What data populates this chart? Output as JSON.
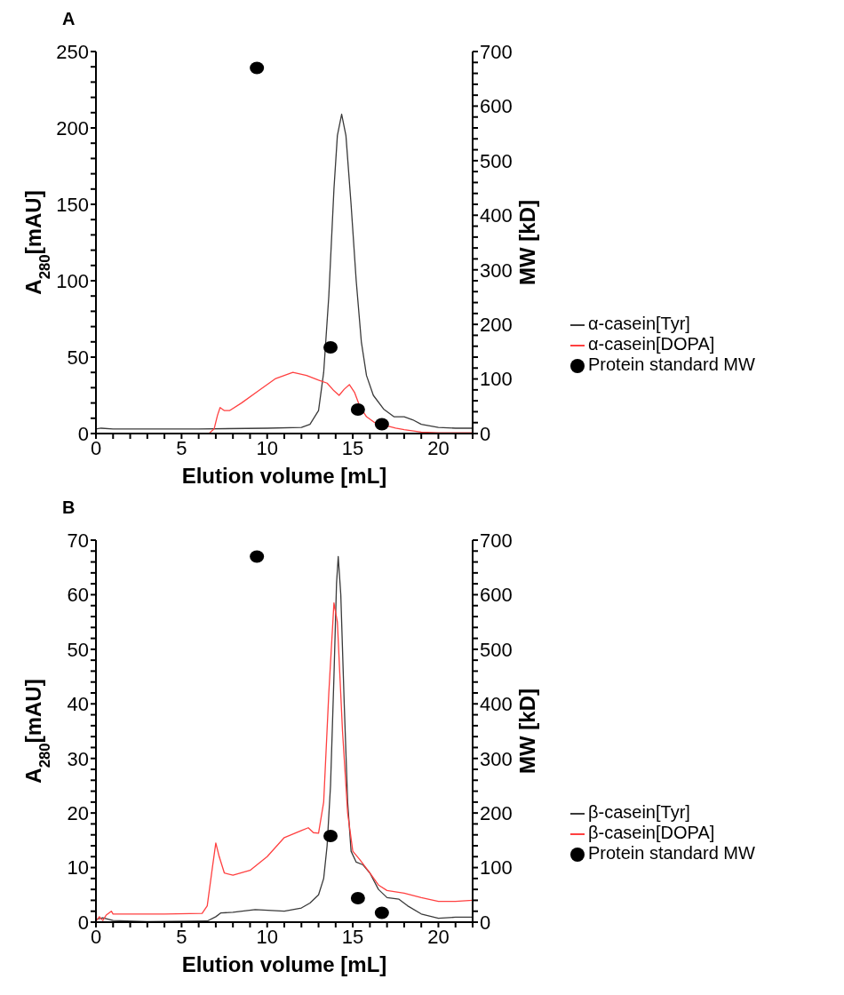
{
  "chart_data": [
    {
      "type": "line",
      "title": "A",
      "xlabel": "Elution volume [mL]",
      "ylabel": "A$_{280}$[mAU]",
      "y2label": "MW [kD]",
      "legend": "right",
      "grid": false,
      "xlim": [
        0,
        22
      ],
      "xticks": [
        0,
        {
          "value": 1,
          "label": null
        },
        {
          "value": 2,
          "label": null
        },
        {
          "value": 3,
          "label": null
        },
        {
          "value": 4,
          "label": null
        },
        5,
        {
          "value": 6,
          "label": null
        },
        {
          "value": 7,
          "label": null
        },
        {
          "value": 8,
          "label": null
        },
        {
          "value": 9,
          "label": null
        },
        10,
        {
          "value": 11,
          "label": null
        },
        {
          "value": 12,
          "label": null
        },
        {
          "value": 13,
          "label": null
        },
        {
          "value": 14,
          "label": null
        },
        15,
        {
          "value": 16,
          "label": null
        },
        {
          "value": 17,
          "label": null
        },
        {
          "value": 18,
          "label": null
        },
        {
          "value": 19,
          "label": null
        },
        20,
        {
          "value": 21,
          "label": null
        },
        {
          "value": 22,
          "label": null
        }
      ],
      "ylim": [
        0,
        250
      ],
      "yticks": [
        0,
        {
          "value": 10,
          "label": null
        },
        {
          "value": 20,
          "label": null
        },
        {
          "value": 30,
          "label": null
        },
        {
          "value": 40,
          "label": null
        },
        50,
        {
          "value": 60,
          "label": null
        },
        {
          "value": 70,
          "label": null
        },
        {
          "value": 80,
          "label": null
        },
        {
          "value": 90,
          "label": null
        },
        100,
        {
          "value": 110,
          "label": null
        },
        {
          "value": 120,
          "label": null
        },
        {
          "value": 130,
          "label": null
        },
        {
          "value": 140,
          "label": null
        },
        150,
        {
          "value": 160,
          "label": null
        },
        {
          "value": 170,
          "label": null
        },
        {
          "value": 180,
          "label": null
        },
        {
          "value": 190,
          "label": null
        },
        200,
        {
          "value": 210,
          "label": null
        },
        {
          "value": 220,
          "label": null
        },
        {
          "value": 230,
          "label": null
        },
        {
          "value": 240,
          "label": null
        },
        250
      ],
      "y2lim": [
        0,
        700
      ],
      "y2ticks": [
        0,
        {
          "value": 20,
          "label": null
        },
        {
          "value": 40,
          "label": null
        },
        {
          "value": 60,
          "label": null
        },
        {
          "value": 80,
          "label": null
        },
        100,
        {
          "value": 120,
          "label": null
        },
        {
          "value": 140,
          "label": null
        },
        {
          "value": 160,
          "label": null
        },
        {
          "value": 180,
          "label": null
        },
        200,
        {
          "value": 220,
          "label": null
        },
        {
          "value": 240,
          "label": null
        },
        {
          "value": 260,
          "label": null
        },
        {
          "value": 280,
          "label": null
        },
        300,
        {
          "value": 320,
          "label": null
        },
        {
          "value": 340,
          "label": null
        },
        {
          "value": 360,
          "label": null
        },
        {
          "value": 380,
          "label": null
        },
        400,
        {
          "value": 420,
          "label": null
        },
        {
          "value": 440,
          "label": null
        },
        {
          "value": 460,
          "label": null
        },
        {
          "value": 480,
          "label": null
        },
        500,
        {
          "value": 520,
          "label": null
        },
        {
          "value": 540,
          "label": null
        },
        {
          "value": 560,
          "label": null
        },
        {
          "value": 580,
          "label": null
        },
        600,
        {
          "value": 620,
          "label": null
        },
        {
          "value": 640,
          "label": null
        },
        {
          "value": 660,
          "label": null
        },
        {
          "value": 680,
          "label": null
        },
        700
      ],
      "series": [
        {
          "name": "α-casein[Tyr]",
          "color": "#3a3a3a",
          "marker": "none",
          "x": [
            0,
            0.3,
            1,
            6,
            10,
            12,
            12.5,
            13,
            13.3,
            13.6,
            13.9,
            14.1,
            14.35,
            14.6,
            14.9,
            15.2,
            15.5,
            15.8,
            16.2,
            16.8,
            17.4,
            18,
            18.5,
            19,
            20,
            21,
            22
          ],
          "values": [
            3,
            3.5,
            3,
            3,
            3.5,
            4,
            6,
            15,
            40,
            90,
            160,
            195,
            209,
            195,
            150,
            100,
            60,
            38,
            25,
            16,
            11,
            11,
            9,
            6,
            4,
            3.5,
            3.5
          ]
        },
        {
          "name": "α-casein[DOPA]",
          "color": "#ff4040",
          "marker": "none",
          "x": [
            0,
            6.6,
            6.9,
            7.1,
            7.25,
            7.5,
            7.8,
            8.5,
            9.5,
            10.5,
            11.5,
            12.3,
            13,
            13.5,
            13.9,
            14.2,
            14.5,
            14.8,
            15.1,
            15.4,
            15.8,
            16.3,
            17.5,
            18,
            19,
            20,
            22
          ],
          "values": [
            0,
            0,
            3,
            12,
            17,
            15,
            15,
            20,
            28,
            36,
            40,
            38,
            35,
            33,
            28,
            25,
            29,
            32,
            27,
            18,
            11,
            7,
            3.5,
            2.5,
            1,
            0.5,
            0.5
          ]
        },
        {
          "name": "Protein standard MW",
          "type": "scatter",
          "axis": "y2",
          "color": "#000000",
          "marker": "circle",
          "x": [
            9.4,
            13.7,
            15.3,
            16.7
          ],
          "values": [
            670,
            158,
            44,
            17
          ]
        }
      ]
    },
    {
      "type": "line",
      "title": "B",
      "xlabel": "Elution volume [mL]",
      "ylabel": "A$_{280}$[mAU]",
      "y2label": "MW [kD]",
      "legend": "right",
      "grid": false,
      "xlim": [
        0,
        22
      ],
      "xticks": [
        0,
        {
          "value": 1,
          "label": null
        },
        {
          "value": 2,
          "label": null
        },
        {
          "value": 3,
          "label": null
        },
        {
          "value": 4,
          "label": null
        },
        5,
        {
          "value": 6,
          "label": null
        },
        {
          "value": 7,
          "label": null
        },
        {
          "value": 8,
          "label": null
        },
        {
          "value": 9,
          "label": null
        },
        10,
        {
          "value": 11,
          "label": null
        },
        {
          "value": 12,
          "label": null
        },
        {
          "value": 13,
          "label": null
        },
        {
          "value": 14,
          "label": null
        },
        15,
        {
          "value": 16,
          "label": null
        },
        {
          "value": 17,
          "label": null
        },
        {
          "value": 18,
          "label": null
        },
        {
          "value": 19,
          "label": null
        },
        20,
        {
          "value": 21,
          "label": null
        },
        {
          "value": 22,
          "label": null
        }
      ],
      "ylim": [
        0,
        70
      ],
      "yticks": [
        0,
        {
          "value": 2,
          "label": null
        },
        {
          "value": 4,
          "label": null
        },
        {
          "value": 6,
          "label": null
        },
        {
          "value": 8,
          "label": null
        },
        10,
        {
          "value": 12,
          "label": null
        },
        {
          "value": 14,
          "label": null
        },
        {
          "value": 16,
          "label": null
        },
        {
          "value": 18,
          "label": null
        },
        20,
        {
          "value": 22,
          "label": null
        },
        {
          "value": 24,
          "label": null
        },
        {
          "value": 26,
          "label": null
        },
        {
          "value": 28,
          "label": null
        },
        30,
        {
          "value": 32,
          "label": null
        },
        {
          "value": 34,
          "label": null
        },
        {
          "value": 36,
          "label": null
        },
        {
          "value": 38,
          "label": null
        },
        40,
        {
          "value": 42,
          "label": null
        },
        {
          "value": 44,
          "label": null
        },
        {
          "value": 46,
          "label": null
        },
        {
          "value": 48,
          "label": null
        },
        50,
        {
          "value": 52,
          "label": null
        },
        {
          "value": 54,
          "label": null
        },
        {
          "value": 56,
          "label": null
        },
        {
          "value": 58,
          "label": null
        },
        60,
        {
          "value": 62,
          "label": null
        },
        {
          "value": 64,
          "label": null
        },
        {
          "value": 66,
          "label": null
        },
        {
          "value": 68,
          "label": null
        },
        70
      ],
      "y2lim": [
        0,
        700
      ],
      "y2ticks": [
        0,
        {
          "value": 20,
          "label": null
        },
        {
          "value": 40,
          "label": null
        },
        {
          "value": 60,
          "label": null
        },
        {
          "value": 80,
          "label": null
        },
        100,
        {
          "value": 120,
          "label": null
        },
        {
          "value": 140,
          "label": null
        },
        {
          "value": 160,
          "label": null
        },
        {
          "value": 180,
          "label": null
        },
        200,
        {
          "value": 220,
          "label": null
        },
        {
          "value": 240,
          "label": null
        },
        {
          "value": 260,
          "label": null
        },
        {
          "value": 280,
          "label": null
        },
        300,
        {
          "value": 320,
          "label": null
        },
        {
          "value": 340,
          "label": null
        },
        {
          "value": 360,
          "label": null
        },
        {
          "value": 380,
          "label": null
        },
        400,
        {
          "value": 420,
          "label": null
        },
        {
          "value": 440,
          "label": null
        },
        {
          "value": 460,
          "label": null
        },
        {
          "value": 480,
          "label": null
        },
        500,
        {
          "value": 520,
          "label": null
        },
        {
          "value": 540,
          "label": null
        },
        {
          "value": 560,
          "label": null
        },
        {
          "value": 580,
          "label": null
        },
        600,
        {
          "value": 620,
          "label": null
        },
        {
          "value": 640,
          "label": null
        },
        {
          "value": 660,
          "label": null
        },
        {
          "value": 680,
          "label": null
        },
        700
      ],
      "series": [
        {
          "name": "β-casein[Tyr]",
          "color": "#3a3a3a",
          "marker": "none",
          "x": [
            0,
            0.4,
            1,
            3,
            6.5,
            7,
            7.3,
            8,
            9.3,
            11,
            12,
            12.5,
            13,
            13.3,
            13.5,
            13.7,
            13.9,
            14.05,
            14.15,
            14.3,
            14.5,
            14.7,
            14.9,
            15.2,
            15.6,
            16,
            16.5,
            17,
            17.7,
            18.2,
            19,
            20,
            21,
            22
          ],
          "values": [
            0.5,
            0.8,
            0.3,
            0.1,
            0.2,
            1,
            1.7,
            1.8,
            2.3,
            2,
            2.6,
            3.5,
            5,
            8,
            14,
            25,
            45,
            62,
            67,
            60,
            40,
            22,
            13,
            11,
            10.5,
            9,
            6,
            4.5,
            4.2,
            3,
            1.5,
            0.7,
            0.9,
            0.9
          ]
        },
        {
          "name": "β-casein[DOPA]",
          "color": "#ff4040",
          "marker": "none",
          "x": [
            0,
            0.2,
            0.4,
            0.6,
            0.9,
            1,
            2,
            4,
            6.2,
            6.5,
            6.8,
            7,
            7.2,
            7.5,
            8,
            9,
            10,
            11,
            12,
            12.4,
            12.7,
            13,
            13.3,
            13.6,
            13.9,
            14.1,
            14.4,
            14.7,
            15,
            15.4,
            16,
            16.5,
            17,
            18,
            19,
            20,
            21,
            22
          ],
          "values": [
            0.2,
            1,
            0.3,
            1.3,
            2,
            1.5,
            1.5,
            1.5,
            1.6,
            3,
            10,
            14.5,
            12,
            9,
            8.6,
            9.5,
            12,
            15.5,
            16.8,
            17.3,
            16.4,
            16.3,
            22,
            42,
            58.5,
            55,
            35,
            20,
            13,
            11.5,
            9,
            6.8,
            5.8,
            5.3,
            4.5,
            3.8,
            3.8,
            4
          ]
        },
        {
          "name": "Protein standard MW",
          "type": "scatter",
          "axis": "y2",
          "color": "#000000",
          "marker": "circle",
          "x": [
            9.4,
            13.7,
            15.3,
            16.7
          ],
          "values": [
            670,
            158,
            44,
            17
          ]
        }
      ]
    }
  ]
}
